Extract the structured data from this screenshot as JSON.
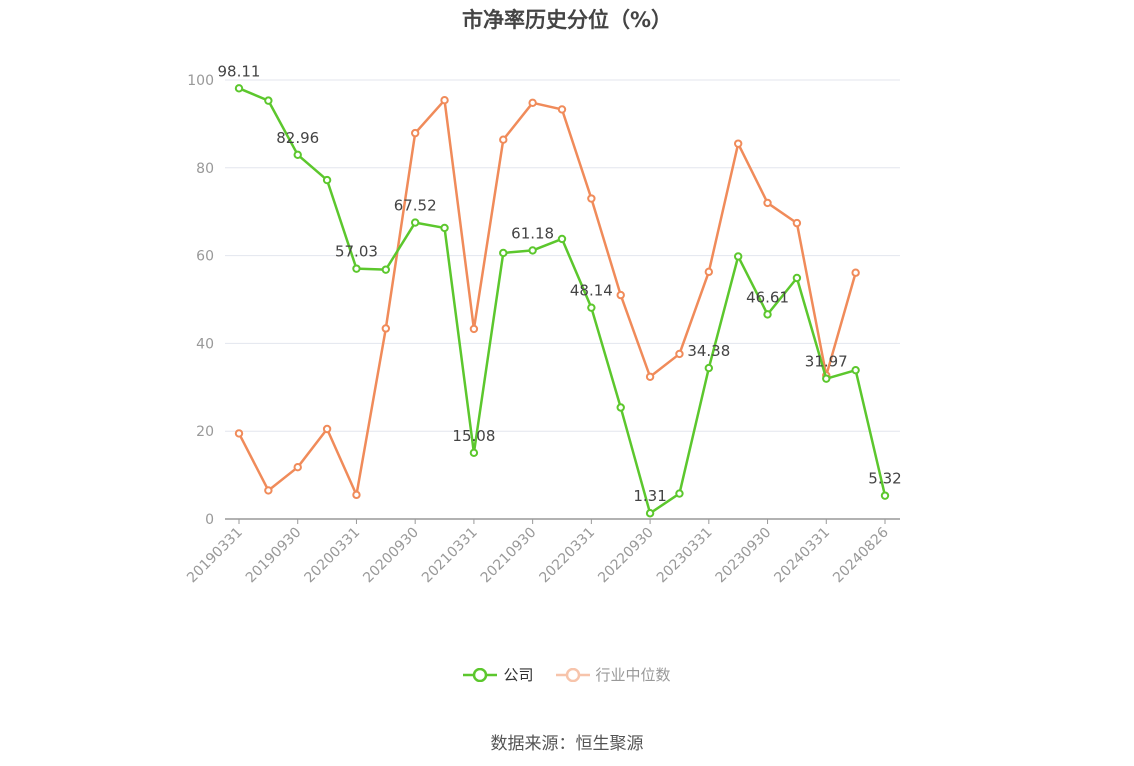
{
  "chart_data": {
    "type": "line",
    "title": "市净率历史分位（%）",
    "ylim": [
      0,
      100
    ],
    "yticks": [
      0,
      20,
      40,
      60,
      80,
      100
    ],
    "x": [
      "20190331",
      "20190630",
      "20190930",
      "20191231",
      "20200331",
      "20200630",
      "20200930",
      "20201231",
      "20210331",
      "20210630",
      "20210930",
      "20211231",
      "20220331",
      "20220630",
      "20220930",
      "20221231",
      "20230331",
      "20230630",
      "20230930",
      "20231231",
      "20240331",
      "20240630",
      "20240826"
    ],
    "xticks": [
      "20190331",
      "20190930",
      "20200331",
      "20200930",
      "20210331",
      "20210930",
      "20220331",
      "20220930",
      "20230331",
      "20230930",
      "20240331",
      "20240826"
    ],
    "series": [
      {
        "name": "公司",
        "color": "#5cc72d",
        "values": [
          98.11,
          95.3,
          82.96,
          77.2,
          57.03,
          56.8,
          67.52,
          66.3,
          15.08,
          60.6,
          61.18,
          63.8,
          48.14,
          25.4,
          1.31,
          5.8,
          34.38,
          59.8,
          46.61,
          54.9,
          31.97,
          33.9,
          5.32
        ],
        "labels": {
          "0": "98.11",
          "2": "82.96",
          "4": "57.03",
          "6": "67.52",
          "8": "15.08",
          "10": "61.18",
          "12": "48.14",
          "14": "1.31",
          "16": "34.38",
          "18": "46.61",
          "20": "31.97",
          "22": "5.32"
        }
      },
      {
        "name": "行业中位数",
        "color": "#f08b5a",
        "values": [
          19.5,
          6.5,
          11.8,
          20.5,
          5.5,
          43.4,
          87.9,
          95.4,
          43.3,
          86.4,
          94.8,
          93.3,
          73.0,
          51.0,
          32.4,
          37.6,
          56.3,
          85.5,
          72.0,
          67.4,
          32.7,
          56.1,
          null
        ]
      }
    ],
    "legend_position": "bottom",
    "grid": true
  },
  "source_text": "数据来源：恒生聚源"
}
